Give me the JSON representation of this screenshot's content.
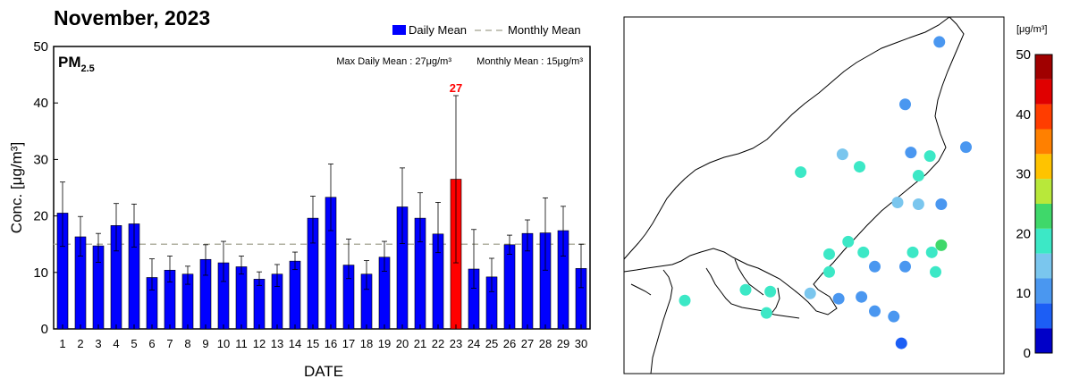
{
  "chart_data": [
    {
      "type": "bar",
      "title": "November, 2023",
      "pollutant": "PM",
      "pollutant_sub": "2.5",
      "max_daily_mean_text": "Max Daily Mean : 27μg/m³",
      "monthly_mean_text": "Monthly Mean : 15μg/m³",
      "xlabel": "DATE",
      "ylabel": "Conc. [μg/m³]",
      "ylim": [
        0,
        50
      ],
      "yticks": [
        "0",
        "10",
        "20",
        "30",
        "40",
        "50"
      ],
      "categories": [
        "1",
        "2",
        "3",
        "4",
        "5",
        "6",
        "7",
        "8",
        "9",
        "10",
        "11",
        "12",
        "13",
        "14",
        "15",
        "16",
        "17",
        "18",
        "19",
        "20",
        "21",
        "22",
        "23",
        "24",
        "25",
        "26",
        "27",
        "28",
        "29",
        "30"
      ],
      "series": [
        {
          "name": "Daily Mean",
          "values": [
            20.5,
            16.3,
            14.7,
            18.3,
            18.6,
            9.1,
            10.4,
            9.7,
            12.3,
            11.7,
            11.0,
            8.8,
            9.7,
            12.0,
            19.6,
            23.3,
            11.3,
            9.7,
            12.7,
            21.6,
            19.6,
            16.8,
            26.5,
            10.6,
            9.2,
            14.9,
            16.9,
            17.0,
            17.4,
            10.7
          ],
          "upper": [
            26.0,
            19.9,
            16.9,
            22.2,
            22.1,
            12.4,
            12.9,
            11.1,
            14.9,
            15.5,
            12.9,
            10.1,
            11.4,
            13.6,
            23.5,
            29.2,
            15.9,
            12.1,
            15.5,
            28.5,
            24.1,
            22.4,
            41.3,
            17.6,
            12.5,
            16.6,
            19.3,
            23.2,
            21.7,
            15.0
          ],
          "lower": [
            14.6,
            12.9,
            11.8,
            13.8,
            14.5,
            6.9,
            8.3,
            7.9,
            9.5,
            8.4,
            9.7,
            7.7,
            7.5,
            10.5,
            15.2,
            17.4,
            8.9,
            7.0,
            10.2,
            15.1,
            15.4,
            13.5,
            11.7,
            7.2,
            6.6,
            13.2,
            13.8,
            10.4,
            12.9,
            7.3
          ],
          "color": "#0000ff"
        },
        {
          "name": "Monthly Mean",
          "value": 15,
          "style": "dashed",
          "color": "#b0b0a0"
        }
      ],
      "highlight": {
        "category": "23",
        "label": "27",
        "color": "#ff0000"
      }
    },
    {
      "type": "scatter",
      "subtype": "station map",
      "colorbar_label": "[μg/m³]",
      "colorbar_ticks": [
        "0",
        "10",
        "20",
        "30",
        "40",
        "50"
      ],
      "colorbar_range": [
        0,
        50
      ],
      "colorbar_colors": [
        "#0000c8",
        "#1c5ef5",
        "#4a97f0",
        "#7ac6ee",
        "#3ce8c6",
        "#3fd86a",
        "#b8e83a",
        "#ffc300",
        "#ff8000",
        "#ff3d00",
        "#e00000",
        "#a00000"
      ],
      "stations": [
        {
          "lon": 0.83,
          "lat": 0.93,
          "value": 12
        },
        {
          "lon": 0.74,
          "lat": 0.755,
          "value": 12
        },
        {
          "lon": 0.575,
          "lat": 0.615,
          "value": 13
        },
        {
          "lon": 0.755,
          "lat": 0.62,
          "value": 12
        },
        {
          "lon": 0.805,
          "lat": 0.61,
          "value": 18
        },
        {
          "lon": 0.9,
          "lat": 0.635,
          "value": 12
        },
        {
          "lon": 0.62,
          "lat": 0.58,
          "value": 18
        },
        {
          "lon": 0.465,
          "lat": 0.565,
          "value": 18
        },
        {
          "lon": 0.775,
          "lat": 0.555,
          "value": 17
        },
        {
          "lon": 0.72,
          "lat": 0.48,
          "value": 13
        },
        {
          "lon": 0.775,
          "lat": 0.475,
          "value": 13
        },
        {
          "lon": 0.835,
          "lat": 0.475,
          "value": 12
        },
        {
          "lon": 0.835,
          "lat": 0.36,
          "value": 22
        },
        {
          "lon": 0.59,
          "lat": 0.37,
          "value": 17
        },
        {
          "lon": 0.63,
          "lat": 0.34,
          "value": 18
        },
        {
          "lon": 0.76,
          "lat": 0.34,
          "value": 18
        },
        {
          "lon": 0.54,
          "lat": 0.335,
          "value": 18
        },
        {
          "lon": 0.81,
          "lat": 0.34,
          "value": 18
        },
        {
          "lon": 0.66,
          "lat": 0.3,
          "value": 12
        },
        {
          "lon": 0.74,
          "lat": 0.3,
          "value": 12
        },
        {
          "lon": 0.82,
          "lat": 0.285,
          "value": 18
        },
        {
          "lon": 0.54,
          "lat": 0.285,
          "value": 18
        },
        {
          "lon": 0.49,
          "lat": 0.225,
          "value": 16
        },
        {
          "lon": 0.625,
          "lat": 0.215,
          "value": 12
        },
        {
          "lon": 0.565,
          "lat": 0.21,
          "value": 12
        },
        {
          "lon": 0.66,
          "lat": 0.175,
          "value": 12
        },
        {
          "lon": 0.71,
          "lat": 0.16,
          "value": 12
        },
        {
          "lon": 0.16,
          "lat": 0.205,
          "value": 18
        },
        {
          "lon": 0.32,
          "lat": 0.235,
          "value": 18
        },
        {
          "lon": 0.385,
          "lat": 0.23,
          "value": 17
        },
        {
          "lon": 0.375,
          "lat": 0.17,
          "value": 18
        },
        {
          "lon": 0.73,
          "lat": 0.085,
          "value": 8
        }
      ]
    }
  ]
}
